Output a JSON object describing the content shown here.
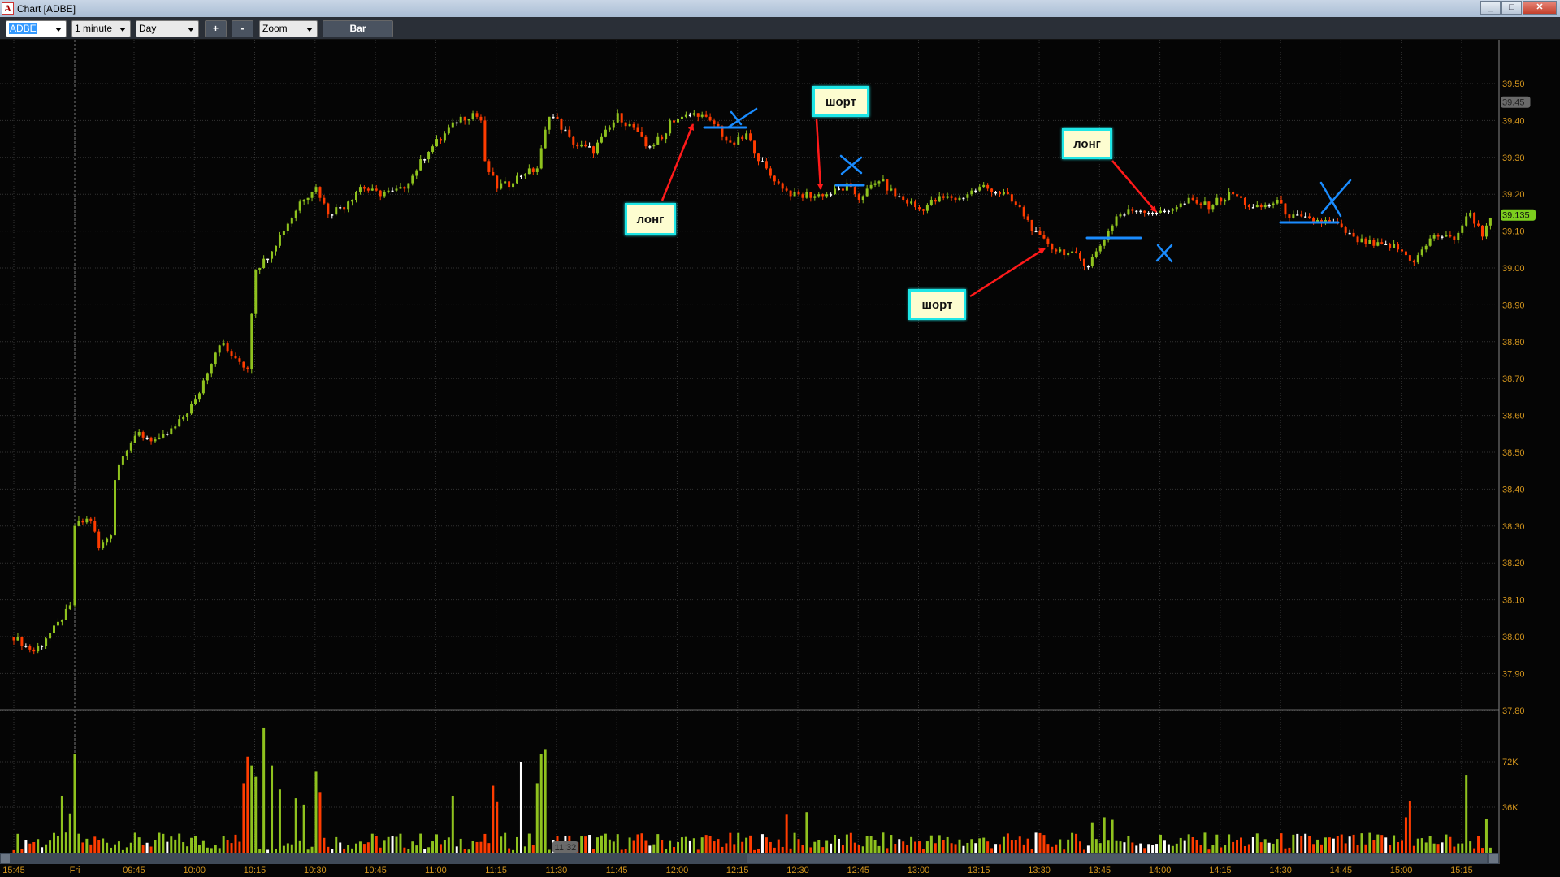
{
  "window": {
    "title": "Chart [ADBE]",
    "app_icon": "A",
    "controls": [
      "minimize-icon",
      "maximize-icon",
      "close-icon"
    ]
  },
  "toolbar": {
    "symbol": "ADBE",
    "interval": "1 minute",
    "range": "Day",
    "zoom_in": "+",
    "zoom_out": "-",
    "zoom": "Zoom",
    "chart_type": "Bar"
  },
  "colors": {
    "up": "#8fc21e",
    "down": "#ff3c00",
    "flat": "#ffffff",
    "axis_text": "#d4961e",
    "last_price_badge": "#7ccd1e",
    "cursor_badge": "#6a6a6a",
    "annotation_fill": "#fdfdd0",
    "annotation_border": "#1ee6e6",
    "arrow": "#ff1a1a",
    "marker": "#1a8cff"
  },
  "chart_data": {
    "type": "candlestick",
    "symbol": "ADBE",
    "interval": "1 minute",
    "ylim": [
      37.8,
      39.5
    ],
    "price_ticks": [
      "39.50",
      "39.40",
      "39.30",
      "39.20",
      "39.10",
      "39.00",
      "38.90",
      "38.80",
      "38.70",
      "38.60",
      "38.50",
      "38.40",
      "38.30",
      "38.20",
      "38.10",
      "38.00",
      "37.90",
      "37.80"
    ],
    "cursor_price": "39.45",
    "last_price": "39.135",
    "time_labels": [
      "15:45",
      "Fri",
      "09:45",
      "10:00",
      "10:15",
      "10:30",
      "10:45",
      "11:00",
      "11:15",
      "11:30",
      "11:45",
      "12:00",
      "12:15",
      "12:30",
      "12:45",
      "13:00",
      "13:15",
      "13:30",
      "13:45",
      "14:00",
      "14:15",
      "14:30",
      "14:45",
      "15:00",
      "15:15"
    ],
    "cursor_time": "11:32",
    "previous_session_close_path": [
      [
        "15:45",
        38.0
      ],
      [
        "15:50",
        37.96
      ],
      [
        "15:55",
        38.02
      ],
      [
        "15:59",
        38.08
      ]
    ],
    "price_path": [
      [
        "09:30",
        38.3
      ],
      [
        "09:34",
        38.32
      ],
      [
        "09:36",
        38.24
      ],
      [
        "09:39",
        38.28
      ],
      [
        "09:40",
        38.43
      ],
      [
        "09:42",
        38.5
      ],
      [
        "09:46",
        38.55
      ],
      [
        "09:51",
        38.53
      ],
      [
        "09:56",
        38.58
      ],
      [
        "10:00",
        38.64
      ],
      [
        "10:03",
        38.72
      ],
      [
        "10:06",
        38.8
      ],
      [
        "10:10",
        38.75
      ],
      [
        "10:13",
        38.73
      ],
      [
        "10:14",
        38.88
      ],
      [
        "10:15",
        39.0
      ],
      [
        "10:17",
        39.02
      ],
      [
        "10:20",
        39.07
      ],
      [
        "10:23",
        39.12
      ],
      [
        "10:26",
        39.18
      ],
      [
        "10:30",
        39.22
      ],
      [
        "10:33",
        39.15
      ],
      [
        "10:37",
        39.17
      ],
      [
        "10:41",
        39.22
      ],
      [
        "10:46",
        39.2
      ],
      [
        "10:51",
        39.21
      ],
      [
        "10:54",
        39.25
      ],
      [
        "10:58",
        39.32
      ],
      [
        "11:01",
        39.35
      ],
      [
        "11:05",
        39.4
      ],
      [
        "11:09",
        39.42
      ],
      [
        "11:11",
        39.4
      ],
      [
        "11:12",
        39.28
      ],
      [
        "11:15",
        39.22
      ],
      [
        "11:18",
        39.23
      ],
      [
        "11:22",
        39.26
      ],
      [
        "11:25",
        39.27
      ],
      [
        "11:28",
        39.42
      ],
      [
        "11:30",
        39.4
      ],
      [
        "11:33",
        39.35
      ],
      [
        "11:35",
        39.33
      ],
      [
        "11:39",
        39.32
      ],
      [
        "11:43",
        39.38
      ],
      [
        "11:45",
        39.41
      ],
      [
        "11:49",
        39.38
      ],
      [
        "11:52",
        39.33
      ],
      [
        "11:56",
        39.35
      ],
      [
        "11:58",
        39.4
      ],
      [
        "12:02",
        39.41
      ],
      [
        "12:05",
        39.42
      ],
      [
        "12:10",
        39.38
      ],
      [
        "12:13",
        39.33
      ],
      [
        "12:17",
        39.36
      ],
      [
        "12:20",
        39.3
      ],
      [
        "12:23",
        39.25
      ],
      [
        "12:27",
        39.21
      ],
      [
        "12:29",
        39.195
      ],
      [
        "12:37",
        39.2
      ],
      [
        "12:42",
        39.22
      ],
      [
        "12:45",
        39.19
      ],
      [
        "12:50",
        39.24
      ],
      [
        "12:54",
        39.2
      ],
      [
        "13:00",
        39.16
      ],
      [
        "13:05",
        39.19
      ],
      [
        "13:10",
        39.19
      ],
      [
        "13:16",
        39.22
      ],
      [
        "13:21",
        39.2
      ],
      [
        "13:25",
        39.16
      ],
      [
        "13:29",
        39.09
      ],
      [
        "13:34",
        39.05
      ],
      [
        "13:39",
        39.03
      ],
      [
        "13:42",
        39.01
      ],
      [
        "13:45",
        39.06
      ],
      [
        "13:49",
        39.14
      ],
      [
        "13:54",
        39.16
      ],
      [
        "14:00",
        39.15
      ],
      [
        "14:07",
        39.18
      ],
      [
        "14:12",
        39.17
      ],
      [
        "14:18",
        39.2
      ],
      [
        "14:23",
        39.16
      ],
      [
        "14:29",
        39.18
      ],
      [
        "14:32",
        39.14
      ],
      [
        "14:43",
        39.12
      ],
      [
        "14:48",
        39.08
      ],
      [
        "14:53",
        39.06
      ],
      [
        "14:58",
        39.06
      ],
      [
        "15:03",
        39.02
      ],
      [
        "15:08",
        39.09
      ],
      [
        "15:13",
        39.08
      ],
      [
        "15:17",
        39.15
      ],
      [
        "15:20",
        39.09
      ],
      [
        "15:22",
        39.135
      ]
    ],
    "volume_ticks": [
      "72K",
      "36K"
    ],
    "volume_k_notable": [
      [
        "15:57",
        45
      ],
      [
        "15:59",
        31
      ],
      [
        "09:30",
        78
      ],
      [
        "10:12",
        55
      ],
      [
        "10:13",
        76
      ],
      [
        "10:14",
        69
      ],
      [
        "10:15",
        60
      ],
      [
        "10:17",
        99
      ],
      [
        "10:19",
        69
      ],
      [
        "10:21",
        50
      ],
      [
        "10:25",
        43
      ],
      [
        "10:27",
        38
      ],
      [
        "10:30",
        64
      ],
      [
        "10:31",
        48
      ],
      [
        "11:04",
        45
      ],
      [
        "11:14",
        53
      ],
      [
        "11:15",
        40
      ],
      [
        "11:21",
        72
      ],
      [
        "11:25",
        55
      ],
      [
        "11:26",
        78
      ],
      [
        "11:27",
        82
      ],
      [
        "12:27",
        30
      ],
      [
        "12:32",
        32
      ],
      [
        "13:43",
        24
      ],
      [
        "13:46",
        28
      ],
      [
        "13:48",
        26
      ],
      [
        "15:01",
        28
      ],
      [
        "15:02",
        41
      ],
      [
        "15:16",
        61
      ],
      [
        "15:21",
        27
      ]
    ]
  },
  "annotations": [
    {
      "label": "лонг"
    },
    {
      "label": "шорт"
    },
    {
      "label": "шорт"
    },
    {
      "label": "лонг"
    }
  ]
}
